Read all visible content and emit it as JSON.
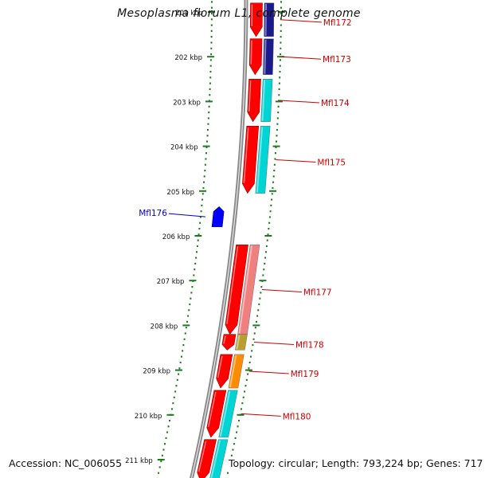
{
  "title": "Mesoplasma florum L1, complete genome",
  "footer": {
    "accession": "Accession: NC_006055",
    "summary": "Topology: circular; Length: 793,224 bp; Genes: 717"
  },
  "colors": {
    "background": "#ffffff",
    "backbone": "#8a8a8a",
    "tick": "#1f7a1f",
    "forward_cds": "#ff0000",
    "reverse_cds": "#0000ff",
    "label_forward": "#cc0000",
    "label_reverse": "#0000cc",
    "cog_cyan": "#00d5d5",
    "cog_navy": "#1a1a8c",
    "cog_pink": "#f08080",
    "cog_orange": "#ff8c00",
    "cog_olive": "#b8a030"
  },
  "scale": {
    "labels": [
      "201 kbp",
      "202 kbp",
      "203 kbp",
      "204 kbp",
      "205 kbp",
      "206 kbp",
      "207 kbp",
      "208 kbp",
      "209 kbp",
      "210 kbp",
      "211 kbp"
    ]
  },
  "genes": [
    {
      "name": "Mfl172",
      "strand": "+",
      "start_kbp": 200.8,
      "end_kbp": 201.55,
      "cog_color": "#1a1a8c"
    },
    {
      "name": "Mfl173",
      "strand": "+",
      "start_kbp": 201.6,
      "end_kbp": 202.4,
      "cog_color": "#1a1a8c"
    },
    {
      "name": "Mfl174",
      "strand": "+",
      "start_kbp": 202.5,
      "end_kbp": 203.45,
      "cog_color": "#00d5d5"
    },
    {
      "name": "Mfl175",
      "strand": "+",
      "start_kbp": 203.55,
      "end_kbp": 205.05,
      "cog_color": "#00d5d5"
    },
    {
      "name": "Mfl176",
      "strand": "-",
      "start_kbp": 205.35,
      "end_kbp": 205.8,
      "cog_color": null
    },
    {
      "name": "Mfl177",
      "strand": "+",
      "start_kbp": 206.2,
      "end_kbp": 208.2,
      "cog_color": "#f08080"
    },
    {
      "name": "Mfl178",
      "strand": "+",
      "start_kbp": 208.2,
      "end_kbp": 208.55,
      "cog_color": "#b8a030"
    },
    {
      "name": "Mfl179",
      "strand": "+",
      "start_kbp": 208.65,
      "end_kbp": 209.4,
      "cog_color": "#ff8c00"
    },
    {
      "name": "Mfl180",
      "strand": "+",
      "start_kbp": 209.45,
      "end_kbp": 210.5,
      "cog_color": "#00d5d5"
    },
    {
      "name": "",
      "strand": "+",
      "start_kbp": 210.55,
      "end_kbp": 211.5,
      "cog_color": "#00d5d5"
    }
  ]
}
